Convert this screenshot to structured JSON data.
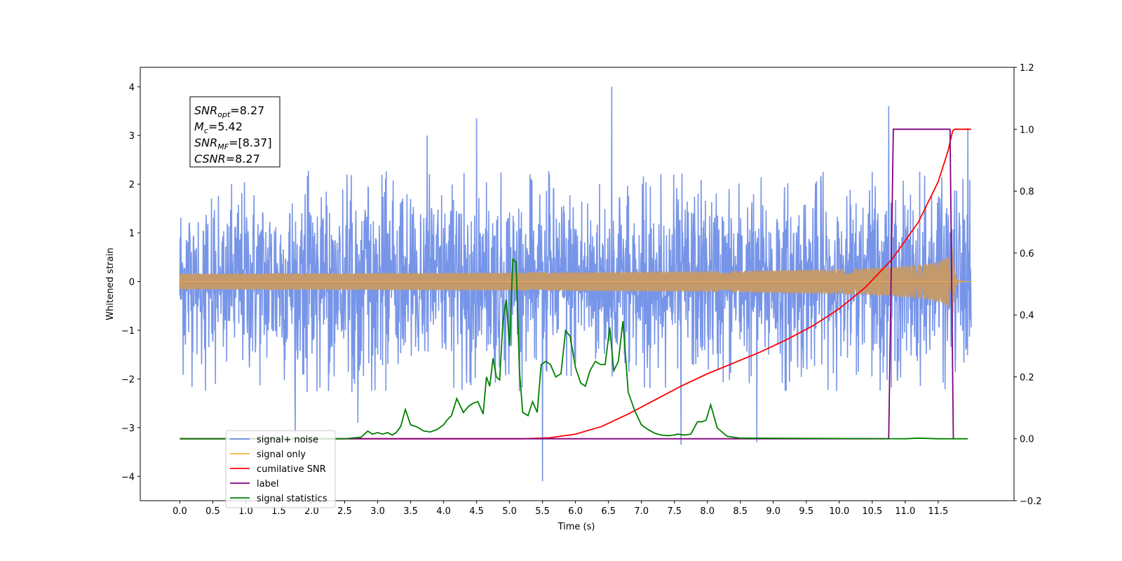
{
  "chart_data": {
    "type": "line",
    "xlabel": "Time (s)",
    "ylabel": "Whitened strain",
    "title": "",
    "x_ticks": [
      0.0,
      0.5,
      1.0,
      1.5,
      2.0,
      2.5,
      3.0,
      3.5,
      4.0,
      4.5,
      5.0,
      5.5,
      6.0,
      6.5,
      7.0,
      7.5,
      8.0,
      8.5,
      9.0,
      9.5,
      10.0,
      10.5,
      11.0,
      11.5
    ],
    "x_tick_labels": [
      "0.0",
      "0.5",
      "1.0",
      "1.5",
      "2.0",
      "2.5",
      "3.0",
      "3.5",
      "4.0",
      "4.5",
      "5.0",
      "5.5",
      "6.0",
      "6.5",
      "7.0",
      "7.5",
      "8.0",
      "8.5",
      "9.0",
      "9.5",
      "10.0",
      "10.5",
      "11.0",
      "11.5"
    ],
    "xlim": [
      -0.6,
      12.65
    ],
    "y_left": {
      "lim": [
        -4.5,
        4.4
      ],
      "ticks": [
        -4,
        -3,
        -2,
        -1,
        0,
        1,
        2,
        3,
        4
      ],
      "tick_labels": [
        "−4",
        "−3",
        "−2",
        "−1",
        "0",
        "1",
        "2",
        "3",
        "4"
      ]
    },
    "y_right": {
      "lim": [
        -0.2,
        1.2
      ],
      "ticks": [
        -0.2,
        0.0,
        0.2,
        0.4,
        0.6,
        0.8,
        1.0,
        1.2
      ],
      "tick_labels": [
        "−0.2",
        "0.0",
        "0.2",
        "0.4",
        "0.6",
        "0.8",
        "1.0",
        "1.2"
      ]
    },
    "annotation": [
      {
        "main": "SNR",
        "sub": "opt",
        "value": "=8.27"
      },
      {
        "main": "M",
        "sub": "c",
        "value": "=5.42"
      },
      {
        "main": "SNR",
        "sub": "MF",
        "value": "=[8.37]"
      },
      {
        "main": "CSNR",
        "sub": "",
        "value": "=8.27"
      }
    ],
    "legend_position": "lower-left",
    "series": [
      {
        "name": "signal+ noise",
        "axis": "left",
        "color": "#6b8ce6",
        "kind": "noise",
        "x_range": [
          0.0,
          12.0
        ],
        "typical_range": [
          -1.6,
          1.8
        ],
        "extremes": [
          [
            1.75,
            -3.1
          ],
          [
            2.7,
            -2.9
          ],
          [
            3.75,
            3.0
          ],
          [
            4.5,
            3.35
          ],
          [
            5.5,
            -4.1
          ],
          [
            6.55,
            4.0
          ],
          [
            7.6,
            -3.35
          ],
          [
            8.75,
            -3.3
          ],
          [
            10.75,
            3.6
          ],
          [
            11.95,
            3.15
          ]
        ]
      },
      {
        "name": "signal only",
        "axis": "left",
        "color": "#f5b041",
        "kind": "chirp",
        "x_range": [
          0.0,
          12.0
        ],
        "merge_time": 11.72,
        "peak_amplitude": 0.85
      },
      {
        "name": "cumilative SNR",
        "axis": "right",
        "color": "#ff0000",
        "x": [
          0,
          5.2,
          5.6,
          6.0,
          6.4,
          6.8,
          7.2,
          7.6,
          8.0,
          8.4,
          8.8,
          9.2,
          9.6,
          10.0,
          10.4,
          10.8,
          11.2,
          11.5,
          11.65,
          11.72,
          11.75,
          12.0
        ],
        "values": [
          0,
          0,
          0.003,
          0.015,
          0.04,
          0.08,
          0.125,
          0.17,
          0.21,
          0.245,
          0.28,
          0.32,
          0.365,
          0.42,
          0.49,
          0.58,
          0.7,
          0.83,
          0.93,
          0.995,
          1.0,
          1.0
        ]
      },
      {
        "name": "label",
        "axis": "right",
        "color": "#800080",
        "x": [
          0,
          10.75,
          10.82,
          11.68,
          11.73,
          11.74
        ],
        "values": [
          0,
          0,
          1.0,
          1.0,
          0,
          0
        ]
      },
      {
        "name": "signal statistics",
        "axis": "right",
        "color": "#008000",
        "x": [
          0,
          2.5,
          2.6,
          2.75,
          2.85,
          2.92,
          3.0,
          3.08,
          3.15,
          3.22,
          3.28,
          3.35,
          3.42,
          3.5,
          3.6,
          3.7,
          3.8,
          3.9,
          4.0,
          4.05,
          4.12,
          4.2,
          4.3,
          4.38,
          4.45,
          4.52,
          4.6,
          4.65,
          4.7,
          4.75,
          4.8,
          4.85,
          4.9,
          4.95,
          5.0,
          5.05,
          5.1,
          5.15,
          5.2,
          5.28,
          5.35,
          5.42,
          5.48,
          5.55,
          5.62,
          5.7,
          5.78,
          5.85,
          5.92,
          6.0,
          6.08,
          6.15,
          6.22,
          6.3,
          6.38,
          6.45,
          6.52,
          6.58,
          6.65,
          6.72,
          6.8,
          6.9,
          7.0,
          7.1,
          7.2,
          7.3,
          7.4,
          7.5,
          7.55,
          7.65,
          7.75,
          7.85,
          7.92,
          7.98,
          8.05,
          8.15,
          8.3,
          8.5,
          11.0,
          11.2,
          11.5,
          11.95
        ],
        "values": [
          0,
          0,
          0.002,
          0.005,
          0.025,
          0.015,
          0.02,
          0.015,
          0.02,
          0.012,
          0.02,
          0.04,
          0.095,
          0.045,
          0.038,
          0.025,
          0.022,
          0.03,
          0.045,
          0.06,
          0.075,
          0.13,
          0.085,
          0.105,
          0.115,
          0.12,
          0.08,
          0.2,
          0.17,
          0.26,
          0.2,
          0.19,
          0.38,
          0.45,
          0.3,
          0.58,
          0.57,
          0.22,
          0.085,
          0.075,
          0.12,
          0.085,
          0.24,
          0.25,
          0.24,
          0.2,
          0.21,
          0.35,
          0.33,
          0.23,
          0.18,
          0.17,
          0.22,
          0.25,
          0.24,
          0.24,
          0.36,
          0.22,
          0.25,
          0.38,
          0.15,
          0.09,
          0.045,
          0.03,
          0.018,
          0.012,
          0.01,
          0.012,
          0.015,
          0.012,
          0.015,
          0.055,
          0.055,
          0.06,
          0.11,
          0.035,
          0.008,
          0.002,
          0,
          0.002,
          0,
          0
        ]
      }
    ],
    "legend_entries": [
      {
        "name": "signal+ noise",
        "color": "#6b8ce6"
      },
      {
        "name": "signal only",
        "color": "#f5b041"
      },
      {
        "name": "cumilative SNR",
        "color": "#ff0000"
      },
      {
        "name": "label",
        "color": "#800080"
      },
      {
        "name": "signal statistics",
        "color": "#008000"
      }
    ]
  }
}
